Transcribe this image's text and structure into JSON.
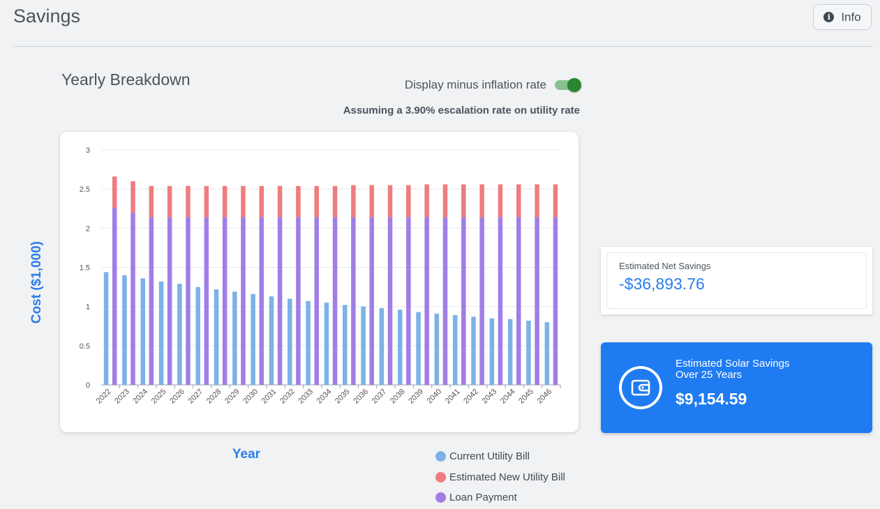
{
  "header": {
    "title": "Savings",
    "info_label": "Info"
  },
  "section": {
    "title": "Yearly Breakdown",
    "toggle_label": "Display minus inflation rate",
    "toggle_on": true,
    "escalation_note": "Assuming a 3.90% escalation rate on utility rate"
  },
  "chart_data": {
    "type": "bar",
    "xlabel": "Year",
    "ylabel": "Cost ($1,000)",
    "ylim": [
      0,
      3
    ],
    "yticks": [
      "0",
      "0.5",
      "1",
      "1.5",
      "2",
      "2.5",
      "3"
    ],
    "grid": true,
    "categories": [
      "2022",
      "2023",
      "2024",
      "2025",
      "2026",
      "2027",
      "2028",
      "2029",
      "2030",
      "2031",
      "2032",
      "2033",
      "2034",
      "2035",
      "2036",
      "2037",
      "2038",
      "2039",
      "2040",
      "2041",
      "2042",
      "2043",
      "2044",
      "2045",
      "2046"
    ],
    "series": [
      {
        "name": "Current Utility Bill",
        "color": "#7cb2e6",
        "stack": "a",
        "values": [
          1.44,
          1.4,
          1.36,
          1.32,
          1.29,
          1.25,
          1.22,
          1.19,
          1.16,
          1.13,
          1.1,
          1.07,
          1.05,
          1.02,
          1.0,
          0.98,
          0.96,
          0.93,
          0.91,
          0.89,
          0.87,
          0.85,
          0.84,
          0.82,
          0.8
        ]
      },
      {
        "name": "Loan Payment",
        "color": "#a07ee6",
        "stack": "b",
        "values": [
          2.26,
          2.2,
          2.14,
          2.14,
          2.14,
          2.14,
          2.14,
          2.14,
          2.14,
          2.14,
          2.14,
          2.14,
          2.14,
          2.14,
          2.14,
          2.14,
          2.14,
          2.14,
          2.14,
          2.14,
          2.14,
          2.14,
          2.14,
          2.14,
          2.14
        ]
      },
      {
        "name": "Estimated New Utility Bill",
        "color": "#ee7c7e",
        "stack": "b",
        "values": [
          0.4,
          0.4,
          0.4,
          0.4,
          0.4,
          0.4,
          0.4,
          0.4,
          0.4,
          0.4,
          0.4,
          0.4,
          0.4,
          0.41,
          0.41,
          0.41,
          0.41,
          0.42,
          0.42,
          0.42,
          0.42,
          0.42,
          0.42,
          0.42,
          0.42
        ]
      }
    ],
    "legend": [
      {
        "label": "Current Utility Bill",
        "color": "#7cb2e6"
      },
      {
        "label": "Estimated New Utility Bill",
        "color": "#ee7c7e"
      },
      {
        "label": "Loan Payment",
        "color": "#a07ee6"
      }
    ],
    "legend_position": "bottom-right"
  },
  "net_savings": {
    "label": "Estimated Net Savings",
    "value": "-$36,893.76"
  },
  "solar_savings": {
    "label_line1": "Estimated Solar Savings",
    "label_line2": "Over 25 Years",
    "value": "$9,154.59",
    "icon": "wallet-icon"
  }
}
